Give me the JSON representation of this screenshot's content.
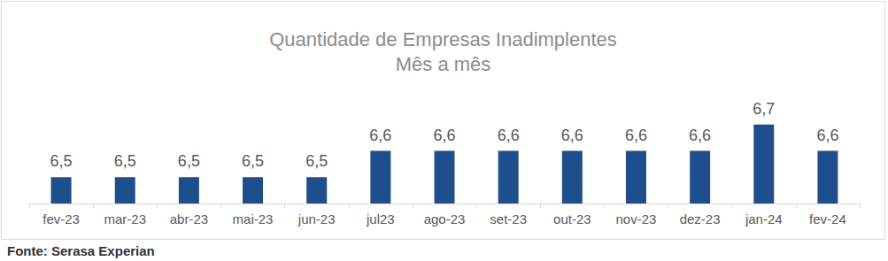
{
  "chart_data": {
    "type": "bar",
    "title": "Quantidade de Empresas Inadimplentes",
    "subtitle": "Mês a mês",
    "source": "Fonte: Serasa Experian",
    "categories": [
      "fev-23",
      "mar-23",
      "abr-23",
      "mai-23",
      "jun-23",
      "jul23",
      "ago-23",
      "set-23",
      "out-23",
      "nov-23",
      "dez-23",
      "jan-24",
      "fev-24"
    ],
    "values": [
      6.5,
      6.5,
      6.5,
      6.5,
      6.5,
      6.6,
      6.6,
      6.6,
      6.6,
      6.6,
      6.6,
      6.7,
      6.6
    ],
    "value_labels": [
      "6,5",
      "6,5",
      "6,5",
      "6,5",
      "6,5",
      "6,6",
      "6,6",
      "6,6",
      "6,6",
      "6,6",
      "6,6",
      "6,7",
      "6,6"
    ],
    "color": "#1f4e8c",
    "ylim": [
      6.4,
      6.8
    ],
    "yticks": [
      6.4,
      6.5,
      6.6,
      6.7,
      6.8
    ],
    "grid": false,
    "data_labels": true,
    "tick_labels": "x"
  }
}
